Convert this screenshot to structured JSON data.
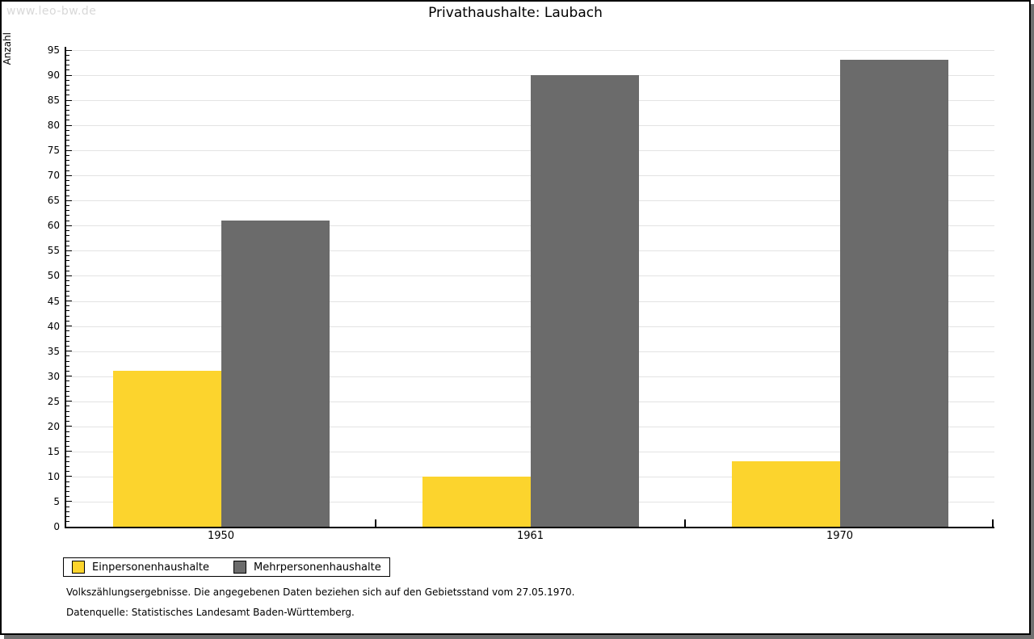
{
  "watermark": "www.leo-bw.de",
  "chart_data": {
    "type": "bar",
    "title": "Privathaushalte: Laubach",
    "ylabel": "Anzahl",
    "xlabel": "",
    "categories": [
      "1950",
      "1961",
      "1970"
    ],
    "series": [
      {
        "name": "Einpersonenhaushalte",
        "color": "#FCD42D",
        "values": [
          31,
          10,
          13
        ]
      },
      {
        "name": "Mehrpersonenhaushalte",
        "color": "#6B6B6B",
        "values": [
          61,
          90,
          93
        ]
      }
    ],
    "ylim": [
      0,
      95
    ],
    "ytick_step": 5,
    "yminor_step": 1,
    "grid": true,
    "legend_position": "bottom-left"
  },
  "footnotes": [
    "Volkszählungsergebnisse. Die angegebenen Daten beziehen sich auf den Gebietsstand vom 27.05.1970.",
    "Datenquelle: Statistisches Landesamt Baden-Württemberg."
  ],
  "theme": {
    "grid_color": "#E3E3E3",
    "axis_color": "#000000",
    "watermark_color": "#D8D8D8",
    "shadow_color": "#707070"
  }
}
